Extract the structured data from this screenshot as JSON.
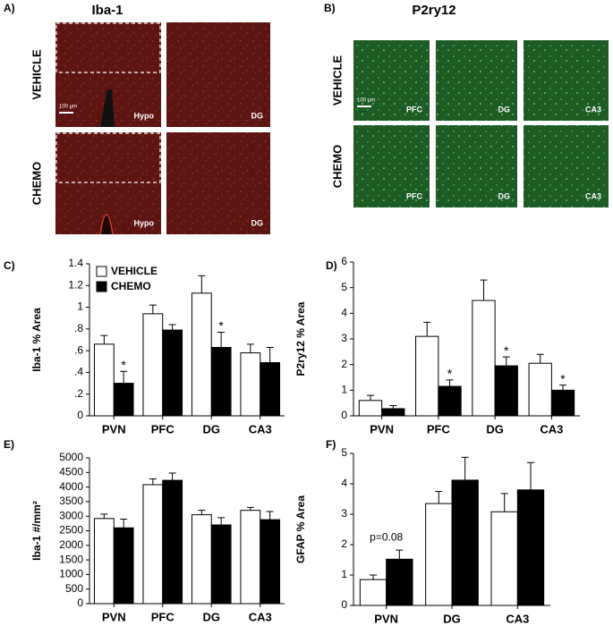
{
  "image_panels": [
    {
      "panel_label": "A)",
      "title": "Iba-1",
      "rows": [
        "VEHICLE",
        "CHEMO"
      ],
      "labels": [
        [
          "Hypo",
          "DG"
        ],
        [
          "Hypo",
          "DG"
        ]
      ],
      "scale_bar": "100 µm"
    },
    {
      "panel_label": "B)",
      "title": "P2ry12",
      "rows": [
        "VEHICLE",
        "CHEMO"
      ],
      "labels": [
        [
          "PFC",
          "DG",
          "CA3"
        ],
        [
          "PFC",
          "DG",
          "CA3"
        ]
      ],
      "scale_bar": "100 µm"
    }
  ],
  "chart_data": [
    {
      "type": "bar",
      "panel_label": "C)",
      "y_label": "Iba-1 % Area",
      "categories": [
        "PVN",
        "PFC",
        "DG",
        "CA3"
      ],
      "series": [
        {
          "name": "VEHICLE",
          "color": "#ffffff",
          "values": [
            0.66,
            0.94,
            1.13,
            0.58
          ],
          "errors": [
            0.08,
            0.08,
            0.16,
            0.08
          ],
          "significance": [
            null,
            null,
            null,
            null
          ]
        },
        {
          "name": "CHEMO",
          "color": "#000000",
          "values": [
            0.3,
            0.79,
            0.63,
            0.49
          ],
          "errors": [
            0.11,
            0.05,
            0.14,
            0.14
          ],
          "significance": [
            "*",
            null,
            "*",
            null
          ]
        }
      ],
      "ylim": [
        0,
        1.4
      ],
      "yticks": [
        0,
        {
          "value": 0.2,
          "label": ".2"
        },
        {
          "value": 0.4,
          "label": ".4"
        },
        {
          "value": 0.6,
          "label": ".6"
        },
        {
          "value": 0.8,
          "label": ".8"
        },
        1,
        1.2,
        1.4
      ],
      "legend": "top-left"
    },
    {
      "type": "bar",
      "panel_label": "D)",
      "y_label": "P2ry12 % Area",
      "categories": [
        "PVN",
        "PFC",
        "DG",
        "CA3"
      ],
      "series": [
        {
          "name": "VEHICLE",
          "color": "#ffffff",
          "values": [
            0.6,
            3.1,
            4.5,
            2.05
          ],
          "errors": [
            0.2,
            0.55,
            0.8,
            0.35
          ],
          "significance": [
            null,
            null,
            null,
            null
          ]
        },
        {
          "name": "CHEMO",
          "color": "#000000",
          "values": [
            0.28,
            1.15,
            1.95,
            1.0
          ],
          "errors": [
            0.12,
            0.25,
            0.35,
            0.2
          ],
          "significance": [
            null,
            "*",
            "*",
            "*"
          ]
        }
      ],
      "ylim": [
        0,
        6
      ],
      "yticks": [
        0,
        1,
        2,
        3,
        4,
        5,
        6
      ]
    },
    {
      "type": "bar",
      "panel_label": "E)",
      "y_label": "Iba-1 #/mm²",
      "categories": [
        "PVN",
        "PFC",
        "DG",
        "CA3"
      ],
      "series": [
        {
          "name": "VEHICLE",
          "color": "#ffffff",
          "values": [
            2920,
            4080,
            3050,
            3200
          ],
          "errors": [
            150,
            200,
            150,
            100
          ],
          "significance": [
            null,
            null,
            null,
            null
          ]
        },
        {
          "name": "CHEMO",
          "color": "#000000",
          "values": [
            2600,
            4230,
            2700,
            2880
          ],
          "errors": [
            300,
            250,
            250,
            280
          ],
          "significance": [
            null,
            null,
            null,
            null
          ]
        }
      ],
      "ylim": [
        0,
        5000
      ],
      "yticks": [
        0,
        500,
        1000,
        1500,
        2000,
        2500,
        3000,
        3500,
        4000,
        4500,
        5000
      ]
    },
    {
      "type": "bar",
      "panel_label": "F)",
      "y_label": "GFAP % Area",
      "categories": [
        "PVN",
        "DG",
        "CA3"
      ],
      "series": [
        {
          "name": "VEHICLE",
          "color": "#ffffff",
          "values": [
            0.85,
            3.35,
            3.08
          ],
          "errors": [
            0.15,
            0.4,
            0.6
          ],
          "significance": [
            null,
            null,
            null
          ]
        },
        {
          "name": "CHEMO",
          "color": "#000000",
          "values": [
            1.52,
            4.12,
            3.8
          ],
          "errors": [
            0.3,
            0.75,
            0.9
          ],
          "significance": [
            null,
            null,
            null
          ]
        }
      ],
      "ylim": [
        0,
        5
      ],
      "yticks": [
        0,
        1,
        2,
        3,
        4,
        5
      ],
      "annotations": [
        {
          "text": "p=0.08",
          "category": "PVN"
        }
      ]
    }
  ]
}
